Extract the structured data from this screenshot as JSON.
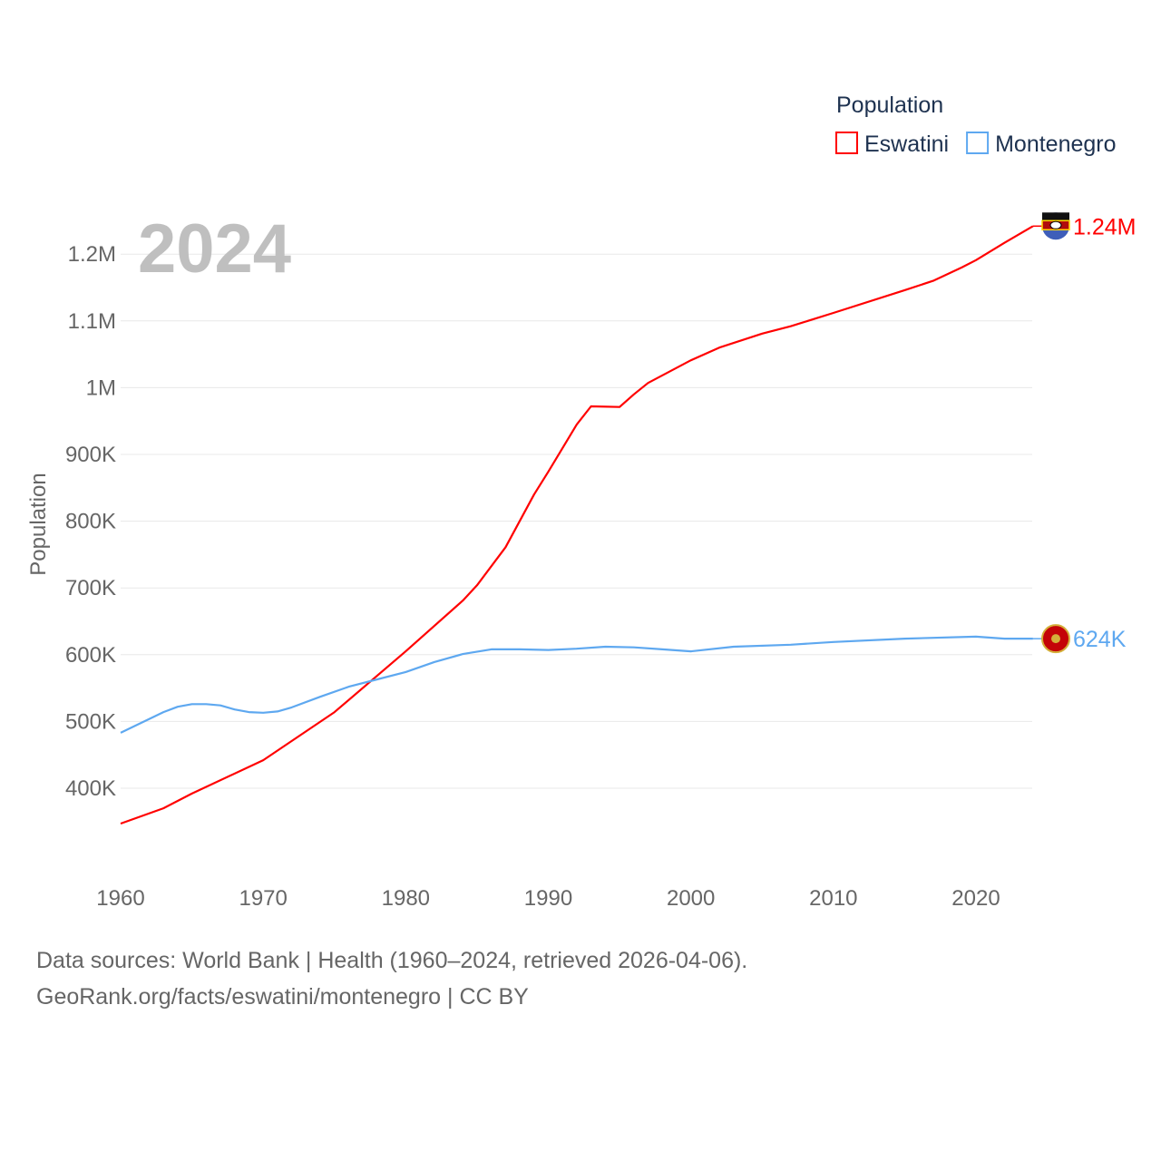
{
  "chart_data": {
    "type": "line",
    "year_label": "2024",
    "ylabel": "Population",
    "xlabel": "",
    "xlim": [
      1960,
      2024
    ],
    "ylim": [
      300000,
      1260000
    ],
    "grid": true,
    "x_ticks": [
      1960,
      1970,
      1980,
      1990,
      2000,
      2010,
      2020
    ],
    "x_tick_labels": [
      "1960",
      "1970",
      "1980",
      "1990",
      "2000",
      "2010",
      "2020"
    ],
    "y_ticks": [
      400000,
      500000,
      600000,
      700000,
      800000,
      900000,
      1000000,
      1100000,
      1200000
    ],
    "y_tick_labels": [
      "400K",
      "500K",
      "600K",
      "700K",
      "800K",
      "900K",
      "1M",
      "1.1M",
      "1.2M"
    ],
    "legend": {
      "title": "Population",
      "placement": "top-right"
    },
    "series": [
      {
        "name": "Eswatini",
        "color": "#ff0000",
        "end_label": "1.24M",
        "flag_icon": "eswatini-flag-icon",
        "x": [
          1960,
          1963,
          1965,
          1970,
          1975,
          1980,
          1984,
          1985,
          1987,
          1989,
          1990,
          1992,
          1993,
          1995,
          1996,
          1997,
          2000,
          2002,
          2005,
          2007,
          2010,
          2015,
          2017,
          2019,
          2020,
          2022,
          2024
        ],
        "y": [
          347000,
          370000,
          392000,
          442000,
          514000,
          605000,
          681000,
          704000,
          761000,
          840000,
          874000,
          945000,
          972000,
          971000,
          990000,
          1007000,
          1041000,
          1060000,
          1081000,
          1092000,
          1112000,
          1146000,
          1160000,
          1180000,
          1191000,
          1217000,
          1242000
        ]
      },
      {
        "name": "Montenegro",
        "color": "#5ea8f0",
        "end_label": "624K",
        "flag_icon": "montenegro-flag-icon",
        "x": [
          1960,
          1963,
          1964,
          1965,
          1966,
          1967,
          1968,
          1969,
          1970,
          1971,
          1972,
          1974,
          1976,
          1978,
          1980,
          1982,
          1984,
          1986,
          1988,
          1990,
          1992,
          1994,
          1996,
          1998,
          2000,
          2003,
          2007,
          2010,
          2015,
          2020,
          2022,
          2024
        ],
        "y": [
          483000,
          514000,
          522000,
          526000,
          526000,
          524000,
          518000,
          514000,
          513000,
          515000,
          521000,
          537000,
          552000,
          563000,
          574000,
          589000,
          601000,
          608000,
          608000,
          607000,
          609000,
          612000,
          611000,
          608000,
          605000,
          612000,
          615000,
          619000,
          624000,
          627000,
          624000,
          624000
        ]
      }
    ]
  },
  "footer": {
    "line1": "Data sources: World Bank | Health (1960–2024, retrieved 2026-04-06).",
    "line2": "GeoRank.org/facts/eswatini/montenegro | CC BY"
  }
}
